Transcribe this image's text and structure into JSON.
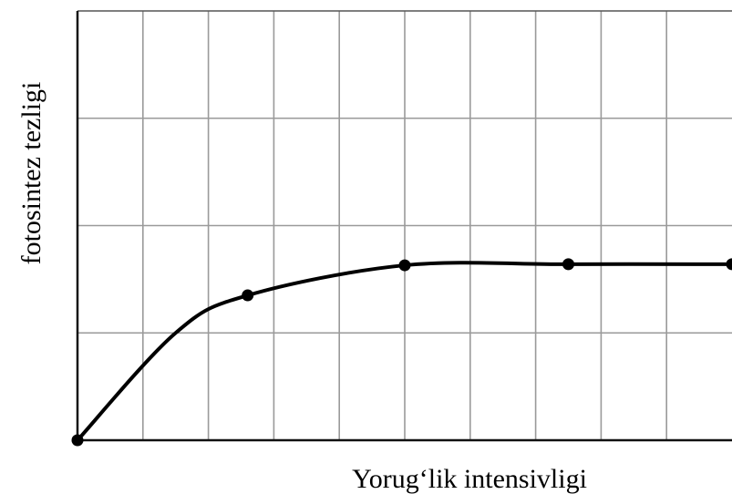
{
  "chart_data": {
    "type": "line",
    "title": "",
    "xlabel": "Yorug‘lik intensivligi",
    "ylabel": "fotosintez tezligi",
    "x_ticks_count": 10,
    "y_ticks_count": 4,
    "xlim": [
      0,
      10
    ],
    "ylim": [
      0,
      4
    ],
    "grid": true,
    "series": [
      {
        "values": [
          {
            "x": 0,
            "y": 0
          },
          {
            "x": 1.5,
            "y": 1.0
          },
          {
            "x": 2.6,
            "y": 1.35
          },
          {
            "x": 5.0,
            "y": 1.63
          },
          {
            "x": 7.5,
            "y": 1.64
          },
          {
            "x": 10,
            "y": 1.64
          }
        ],
        "markers": [
          0,
          2,
          3,
          4,
          5
        ],
        "color": "#000000"
      }
    ]
  }
}
